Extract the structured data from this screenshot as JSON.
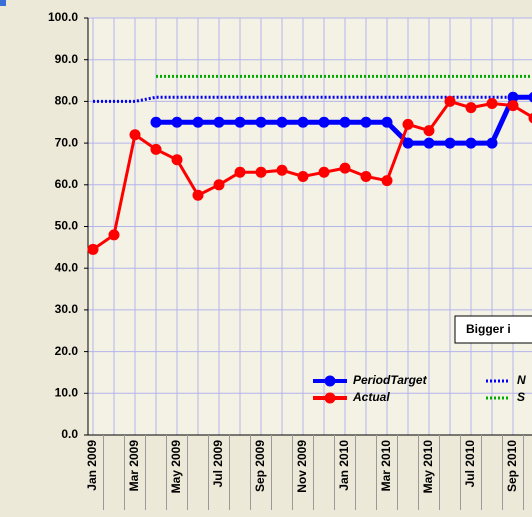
{
  "chart_data": {
    "type": "line",
    "categories": [
      "Jan 2009",
      null,
      "Mar 2009",
      null,
      "May 2009",
      null,
      "Jul 2009",
      null,
      "Sep 2009",
      null,
      "Nov 2009",
      null,
      "Jan 2010",
      null,
      "Mar 2010",
      null,
      "May 2010",
      null,
      "Jul 2010",
      null,
      "Sep 2010",
      null
    ],
    "series": [
      {
        "name": "PeriodTarget",
        "color": "#0000ff",
        "style": "solid",
        "markers": true,
        "values": [
          null,
          null,
          null,
          75,
          75,
          75,
          75,
          75,
          75,
          75,
          75,
          75,
          75,
          75,
          75,
          70,
          70,
          70,
          70,
          70,
          81,
          81
        ]
      },
      {
        "name": "Actual",
        "color": "#ff0000",
        "style": "solid",
        "markers": true,
        "values": [
          44.5,
          48,
          72,
          68.5,
          66,
          57.5,
          60,
          63,
          63,
          63.5,
          62,
          63,
          64,
          62,
          61,
          74.5,
          73,
          80,
          78.5,
          79.5,
          79,
          76
        ]
      },
      {
        "name": "N",
        "color": "#0000ff",
        "style": "dotted",
        "markers": false,
        "values": [
          80,
          80,
          80,
          81,
          81,
          81,
          81,
          81,
          81,
          81,
          81,
          81,
          81,
          81,
          81,
          81,
          81,
          81,
          81,
          81,
          81,
          81
        ]
      },
      {
        "name": "S",
        "color": "#00aa00",
        "style": "dotted",
        "markers": false,
        "values": [
          null,
          null,
          null,
          86,
          86,
          86,
          86,
          86,
          86,
          86,
          86,
          86,
          86,
          86,
          86,
          86,
          86,
          86,
          86,
          86,
          86,
          86
        ]
      }
    ],
    "ylim": [
      0,
      100
    ],
    "yticks": [
      {
        "value": 0,
        "label": "0.0"
      },
      {
        "value": 10,
        "label": "10.0"
      },
      {
        "value": 20,
        "label": "20.0"
      },
      {
        "value": 30,
        "label": "30.0"
      },
      {
        "value": 40,
        "label": "40.0"
      },
      {
        "value": 50,
        "label": "50.0"
      },
      {
        "value": 60,
        "label": "60.0"
      },
      {
        "value": 70,
        "label": "70.0"
      },
      {
        "value": 80,
        "label": "80.0"
      },
      {
        "value": 90,
        "label": "90.0"
      },
      {
        "value": 100,
        "label": "100.0"
      }
    ],
    "grid": true,
    "annotation": "Bigger i"
  }
}
